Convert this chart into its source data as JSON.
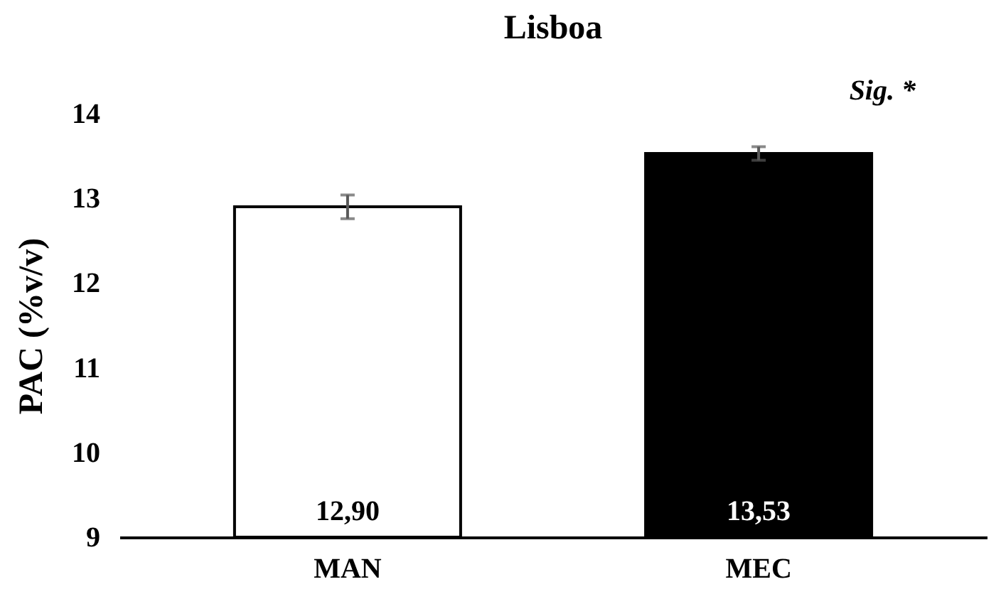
{
  "chart_data": {
    "type": "bar",
    "title": "Lisboa",
    "ylabel": "PAC (%v/v)",
    "categories": [
      "MAN",
      "MEC"
    ],
    "values": [
      12.9,
      13.53
    ],
    "colors": [
      "#ffffff",
      "#000000"
    ],
    "errors": [
      0.14,
      0.08
    ],
    "value_labels": [
      "12,90",
      "13,53"
    ],
    "annotations": [
      "Sig. *"
    ],
    "ylim": [
      9,
      14
    ],
    "yticks": [
      9,
      10,
      11,
      12,
      13,
      14
    ],
    "grid": false
  }
}
